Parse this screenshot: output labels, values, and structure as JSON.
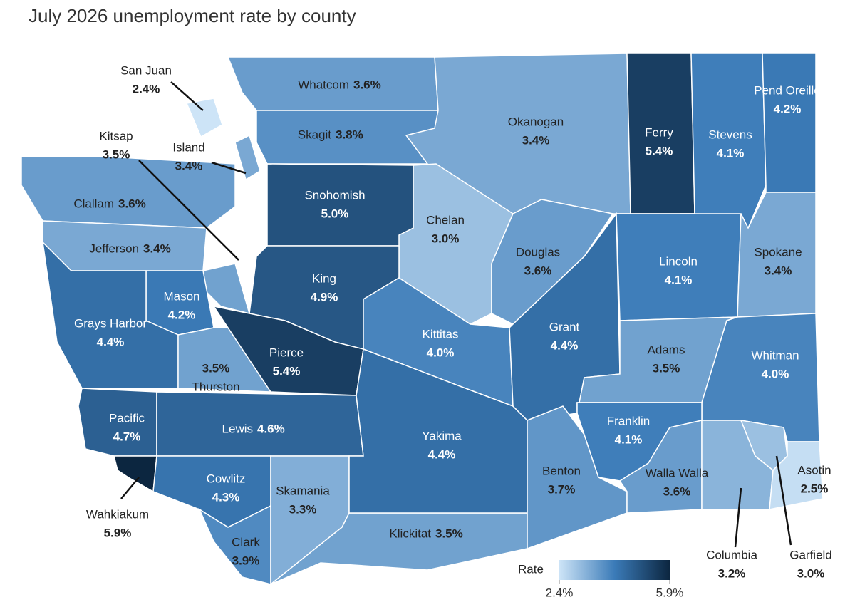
{
  "chart_data": {
    "type": "choropleth",
    "title": "July 2026 unemployment rate by county",
    "categories": [
      "Whatcom",
      "San Juan",
      "Skagit",
      "Okanogan",
      "Ferry",
      "Stevens",
      "Pend Oreille",
      "Island",
      "Snohomish",
      "Chelan",
      "Douglas",
      "Clallam",
      "Jefferson",
      "Kitsap",
      "King",
      "Mason",
      "Grays Harbor",
      "Thurston",
      "Pierce",
      "Pacific",
      "Wahkiakum",
      "Lewis",
      "Cowlitz",
      "Clark",
      "Skamania",
      "Klickitat",
      "Kittitas",
      "Yakima",
      "Grant",
      "Lincoln",
      "Spokane",
      "Adams",
      "Whitman",
      "Benton",
      "Franklin",
      "Walla Walla",
      "Columbia",
      "Garfield",
      "Asotin"
    ],
    "values": [
      3.6,
      2.4,
      3.8,
      3.4,
      5.4,
      4.1,
      4.2,
      3.4,
      5.0,
      3.0,
      3.6,
      3.6,
      3.4,
      3.5,
      4.9,
      4.2,
      4.4,
      3.5,
      5.4,
      4.7,
      5.9,
      4.6,
      4.3,
      3.9,
      3.3,
      3.5,
      4.0,
      4.4,
      4.4,
      4.1,
      3.4,
      3.5,
      4.0,
      3.7,
      4.1,
      3.6,
      3.2,
      3.0,
      2.5
    ],
    "value_labels": [
      "3.6%",
      "2.4%",
      "3.8%",
      "3.4%",
      "5.4%",
      "4.1%",
      "4.2%",
      "3.4%",
      "5.0%",
      "3.0%",
      "3.6%",
      "3.6%",
      "3.4%",
      "3.5%",
      "4.9%",
      "4.2%",
      "4.4%",
      "3.5%",
      "5.4%",
      "4.7%",
      "5.9%",
      "4.6%",
      "4.3%",
      "3.9%",
      "3.3%",
      "3.5%",
      "4.0%",
      "4.4%",
      "4.4%",
      "4.1%",
      "3.4%",
      "3.5%",
      "4.0%",
      "3.7%",
      "4.1%",
      "3.6%",
      "3.2%",
      "3.0%",
      "2.5%"
    ],
    "legend_title": "Rate",
    "colorlim": [
      2.4,
      5.9
    ],
    "colorticks": [
      {
        "value": 2.4,
        "label": "2.4%"
      },
      {
        "value": 5.9,
        "label": "5.9%"
      }
    ],
    "colors": [
      "#cde4f7",
      "#3b7bb8",
      "#0c2640"
    ]
  }
}
